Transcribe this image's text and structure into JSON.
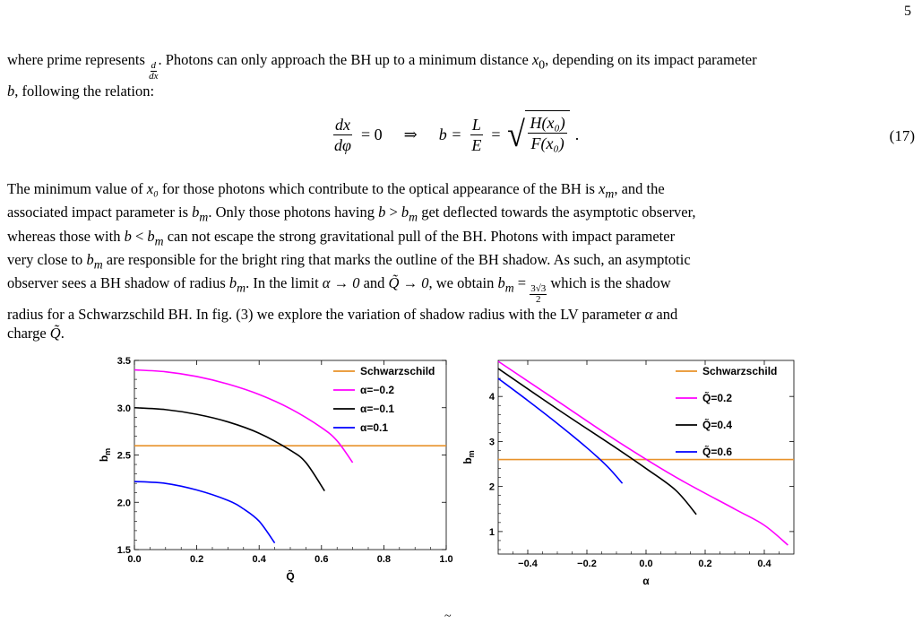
{
  "page_number": "5",
  "para1": {
    "t1": "where prime represents ",
    "d_num": "d",
    "d_den": "dx",
    "t2": ". Photons can only approach the BH up to a minimum distance ",
    "x0": "x",
    "x0_sub": "0",
    "t3": ", depending on its impact parameter ",
    "b": "b",
    "t4": ", following the relation:"
  },
  "equation": {
    "lhs_num": "dx",
    "lhs_den": "dφ",
    "eq0": "= 0",
    "implies": "⇒",
    "b": "b =",
    "L": "L",
    "E": "E",
    "eq": "=",
    "H": "H(x₀)",
    "F": "F(x₀)",
    "dot": ".",
    "number": "(17)"
  },
  "para2": {
    "l1a": "The minimum value of ",
    "l1b": " for those photons which contribute to the optical appearance of the BH is ",
    "l1c": ", and the",
    "l2a": "associated impact parameter is ",
    "l2b": ". Only those photons having ",
    "l2c": " get deflected towards the asymptotic observer,",
    "l3a": "whereas those with ",
    "l3b": " can not escape the strong gravitational pull of the BH. Photons with impact parameter",
    "l4a": "very close to ",
    "l4b": " are responsible for the bright ring that marks the outline of the BH shadow. As such, an asymptotic",
    "l5a": "observer sees a BH shadow of radius ",
    "l5b": ". In the limit ",
    "l5c": " and ",
    "l5d": ", we obtain ",
    "l5e": " which is the shadow",
    "l6a": "radius for a Schwarzschild BH. In fig. (3) we explore the variation of shadow radius with the LV parameter ",
    "l6b": " and",
    "l7a": "charge ",
    "l7b": "."
  },
  "math": {
    "x0": "x₀",
    "xm": "x",
    "m": "m",
    "b": "b",
    "gt": " > ",
    "lt": " < ",
    "alpha_to_0": "α → 0",
    "Q_to_0": "Q̃ → 0",
    "bm_eq": " = ",
    "frac_num": "3√3",
    "frac_den": "2",
    "alpha": "α",
    "Q": "Q̃"
  },
  "colors": {
    "schwarzschild": "#e8922a",
    "magenta": "#ff00ff",
    "black": "#000000",
    "blue": "#0000ff"
  },
  "chart_data": [
    {
      "type": "line",
      "xlabel": "Q̃",
      "ylabel": "b_m",
      "xlim": [
        0.0,
        1.0
      ],
      "ylim": [
        1.5,
        3.5
      ],
      "xticks": [
        "0.0",
        "0.2",
        "0.4",
        "0.6",
        "0.8",
        "1.0"
      ],
      "yticks": [
        "1.5",
        "2.0",
        "2.5",
        "3.0",
        "3.5"
      ],
      "legend_position": "top-right",
      "series": [
        {
          "name": "Schwarzschild",
          "color": "#e8922a",
          "x": [
            0.0,
            1.0
          ],
          "y": [
            2.598,
            2.598
          ]
        },
        {
          "name": "α=−0.2",
          "color": "#ff00ff",
          "x": [
            0.0,
            0.1,
            0.2,
            0.3,
            0.4,
            0.5,
            0.6,
            0.65,
            0.7
          ],
          "y": [
            3.4,
            3.38,
            3.33,
            3.25,
            3.14,
            2.99,
            2.79,
            2.65,
            2.42
          ]
        },
        {
          "name": "α=−0.1",
          "color": "#000000",
          "x": [
            0.0,
            0.1,
            0.2,
            0.3,
            0.4,
            0.5,
            0.55,
            0.61
          ],
          "y": [
            3.0,
            2.98,
            2.93,
            2.85,
            2.73,
            2.55,
            2.42,
            2.12
          ]
        },
        {
          "name": "α=0.1",
          "color": "#0000ff",
          "x": [
            0.0,
            0.1,
            0.2,
            0.3,
            0.35,
            0.4,
            0.45
          ],
          "y": [
            2.22,
            2.2,
            2.13,
            2.02,
            1.93,
            1.8,
            1.57
          ]
        }
      ]
    },
    {
      "type": "line",
      "xlabel": "α",
      "ylabel": "b_m",
      "xlim": [
        -0.5,
        0.5
      ],
      "ylim": [
        0.5,
        4.8
      ],
      "xticks": [
        "−0.4",
        "−0.2",
        "0.0",
        "0.2",
        "0.4"
      ],
      "yticks": [
        "1",
        "2",
        "3",
        "4"
      ],
      "legend_position": "top-right",
      "series": [
        {
          "name": "Schwarzschild",
          "color": "#e8922a",
          "x": [
            -0.5,
            0.5
          ],
          "y": [
            2.598,
            2.598
          ]
        },
        {
          "name": "Q̃=0.2",
          "color": "#ff00ff",
          "x": [
            -0.5,
            -0.3,
            -0.1,
            0.1,
            0.3,
            0.4,
            0.48
          ],
          "y": [
            4.78,
            3.9,
            3.02,
            2.21,
            1.5,
            1.14,
            0.7
          ]
        },
        {
          "name": "Q̃=0.4",
          "color": "#000000",
          "x": [
            -0.5,
            -0.3,
            -0.1,
            0.0,
            0.1,
            0.17
          ],
          "y": [
            4.62,
            3.72,
            2.85,
            2.4,
            1.92,
            1.38
          ]
        },
        {
          "name": "Q̃=0.6",
          "color": "#0000ff",
          "x": [
            -0.5,
            -0.4,
            -0.3,
            -0.2,
            -0.13,
            -0.08
          ],
          "y": [
            4.4,
            3.91,
            3.4,
            2.86,
            2.44,
            2.07
          ]
        }
      ]
    }
  ]
}
